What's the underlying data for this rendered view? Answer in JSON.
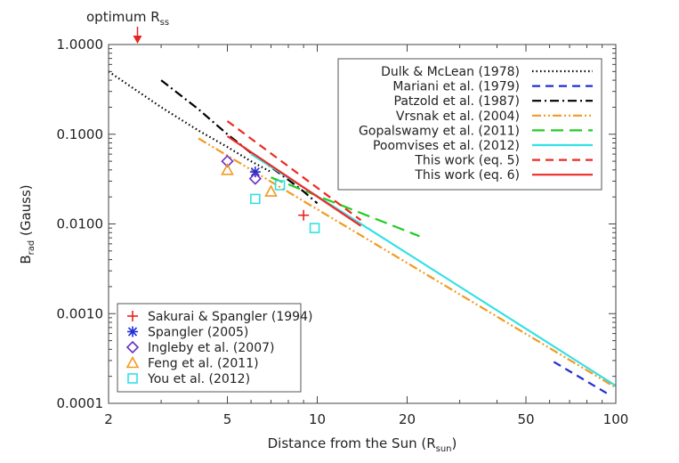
{
  "chart_data": {
    "type": "line",
    "xscale": "log",
    "yscale": "log",
    "xlim": [
      2,
      100
    ],
    "ylim": [
      0.0001,
      1.0
    ],
    "xlabel": "Distance from the Sun (R",
    "xlabel_sub": "sun",
    "xlabel_end": ")",
    "ylabel_main": "B",
    "ylabel_sub": "rad",
    "ylabel_end": " (Gauss)",
    "xticks": [
      {
        "value": 2,
        "label": "2"
      },
      {
        "value": 5,
        "label": "5"
      },
      {
        "value": 10,
        "label": "10"
      },
      {
        "value": 20,
        "label": "20"
      },
      {
        "value": 50,
        "label": "50"
      },
      {
        "value": 100,
        "label": "100"
      }
    ],
    "yticks": [
      {
        "value": 1.0,
        "label": "1.0000"
      },
      {
        "value": 0.1,
        "label": "0.1000"
      },
      {
        "value": 0.01,
        "label": "0.0100"
      },
      {
        "value": 0.001,
        "label": "0.0010"
      },
      {
        "value": 0.0001,
        "label": "0.0001"
      }
    ],
    "annotation": {
      "text": "optimum R",
      "sub": "ss",
      "x": 2.5,
      "color": "#e8231e"
    },
    "lines": [
      {
        "name": "Dulk & McLean (1978)",
        "color": "#000000",
        "style": "dotted",
        "points": [
          [
            2.0,
            0.5
          ],
          [
            3.0,
            0.2
          ],
          [
            4.0,
            0.11
          ],
          [
            5.0,
            0.072
          ],
          [
            6.0,
            0.05
          ],
          [
            7.0,
            0.038
          ]
        ]
      },
      {
        "name": "Mariani et al. (1979)",
        "color": "#1f2fd6",
        "style": "dashed",
        "points": [
          [
            62,
            0.00029
          ],
          [
            95,
            0.000125
          ]
        ]
      },
      {
        "name": "Patzold et al. (1987)",
        "color": "#000000",
        "style": "dashdot",
        "points": [
          [
            3.0,
            0.4
          ],
          [
            4.0,
            0.19
          ],
          [
            5.0,
            0.1
          ],
          [
            6.0,
            0.062
          ],
          [
            7.0,
            0.043
          ],
          [
            8.0,
            0.031
          ],
          [
            9.0,
            0.023
          ],
          [
            10.0,
            0.017
          ]
        ]
      },
      {
        "name": "Vrsnak et al. (2004)",
        "color": "#f29a1f",
        "style": "dashdotdot",
        "points": [
          [
            4.0,
            0.09
          ],
          [
            100,
            0.00015
          ]
        ]
      },
      {
        "name": "Gopalswamy et al. (2011)",
        "color": "#22cc22",
        "style": "longdash",
        "points": [
          [
            7.0,
            0.033
          ],
          [
            22.0,
            0.0073
          ]
        ]
      },
      {
        "name": "Poomvises et al. (2012)",
        "color": "#33e0e6",
        "style": "solid",
        "points": [
          [
            6.0,
            0.06
          ],
          [
            100,
            0.000157
          ]
        ]
      },
      {
        "name": "This work (eq. 5)",
        "color": "#ee2a24",
        "style": "dashed",
        "points": [
          [
            5.0,
            0.14
          ],
          [
            14.0,
            0.011
          ]
        ]
      },
      {
        "name": "This work (eq. 6)",
        "color": "#ee2a24",
        "style": "solid",
        "points": [
          [
            5.0,
            0.095
          ],
          [
            14.0,
            0.0095
          ]
        ]
      }
    ],
    "markers": [
      {
        "name": "Sakurai & Spangler (1994)",
        "symbol": "plus",
        "color": "#e8231e",
        "points": [
          [
            9.0,
            0.0125
          ]
        ]
      },
      {
        "name": "Spangler (2005)",
        "symbol": "asterisk",
        "color": "#1f2fd6",
        "points": [
          [
            6.2,
            0.038
          ]
        ]
      },
      {
        "name": "Ingleby et al. (2007)",
        "symbol": "diamond",
        "color": "#6a2fc8",
        "points": [
          [
            5.0,
            0.05
          ],
          [
            6.2,
            0.032
          ]
        ]
      },
      {
        "name": "Feng et al. (2011)",
        "symbol": "triangle",
        "color": "#f29a1f",
        "points": [
          [
            5.0,
            0.04
          ],
          [
            7.0,
            0.023
          ]
        ]
      },
      {
        "name": "You et al. (2012)",
        "symbol": "square",
        "color": "#33e0e6",
        "points": [
          [
            6.2,
            0.019
          ],
          [
            7.5,
            0.027
          ],
          [
            9.8,
            0.009
          ]
        ]
      }
    ],
    "legend_lines_position": "top-right",
    "legend_markers_position": "bottom-left"
  }
}
